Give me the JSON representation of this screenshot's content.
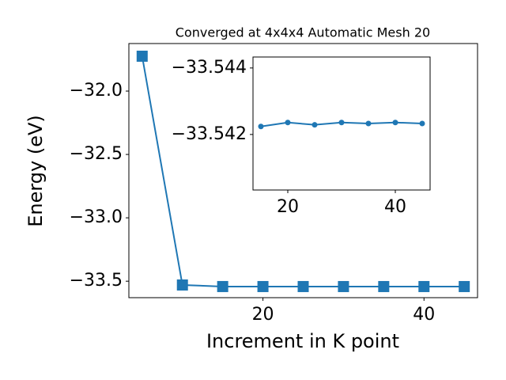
{
  "chart_data": [
    {
      "type": "line",
      "title": "Converged at 4x4x4 Automatic Mesh 20",
      "x_label": "Increment in K point",
      "y_label": "Energy (eV)",
      "x": [
        5,
        10,
        15,
        20,
        25,
        30,
        35,
        40,
        45
      ],
      "series": [
        {
          "color": "#1f77b4",
          "marker": "square",
          "values": [
            -31.725,
            -33.53,
            -33.54224,
            -33.54236,
            -33.54229,
            -33.54236,
            -33.54233,
            -33.54236,
            -33.54233
          ]
        }
      ],
      "xlim": [
        3.35,
        46.65
      ],
      "ylim": [
        -33.63,
        -31.625
      ],
      "xticks": [
        20,
        40
      ],
      "yticks": [
        {
          "value": -33.5,
          "label": "−33.5"
        },
        {
          "value": -33.0,
          "label": "−33.0"
        },
        {
          "value": -32.5,
          "label": "−32.5"
        },
        {
          "value": -32.0,
          "label": "−32.0"
        }
      ]
    },
    {
      "type": "line",
      "x": [
        15,
        20,
        25,
        30,
        35,
        40,
        45
      ],
      "series": [
        {
          "color": "#1f77b4",
          "marker": "circle",
          "values": [
            -33.54224,
            -33.54236,
            -33.54229,
            -33.54236,
            -33.54233,
            -33.54236,
            -33.54233
          ]
        }
      ],
      "xlim": [
        13.53,
        46.47
      ],
      "ylim": [
        -33.54033,
        -33.54433
      ],
      "xticks": [
        20,
        40
      ],
      "yticks": [
        {
          "value": -33.542,
          "label": "−33.542"
        },
        {
          "value": -33.544,
          "label": "−33.544"
        }
      ]
    }
  ]
}
